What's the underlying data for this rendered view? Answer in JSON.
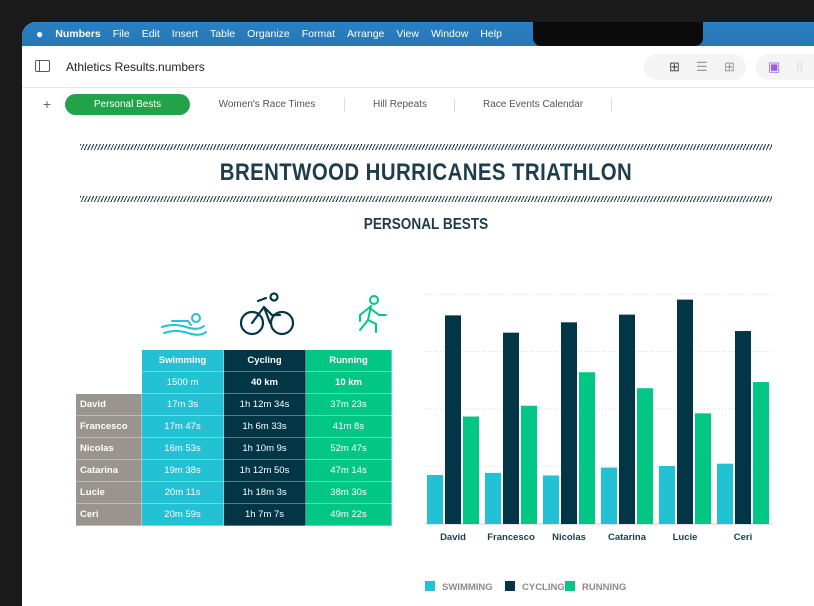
{
  "menubar": {
    "app": "Numbers",
    "items": [
      "File",
      "Edit",
      "Insert",
      "Table",
      "Organize",
      "Format",
      "Arrange",
      "View",
      "Window",
      "Help"
    ]
  },
  "toolbar": {
    "doc_title": "Athletics Results.numbers"
  },
  "tabs": {
    "add": "+",
    "items": [
      "Personal Bests",
      "Women's Race Times",
      "Hill Repeats",
      "Race Events Calendar"
    ],
    "active": 0
  },
  "sheet": {
    "title": "BRENTWOOD HURRICANES TRIATHLON",
    "subtitle": "PERSONAL BESTS"
  },
  "colors": {
    "swimming": "#22c1d4",
    "cycling": "#023646",
    "running": "#02c784",
    "names": "#9a948f",
    "tab_active": "#22a34a"
  },
  "table": {
    "headers": [
      {
        "name": "Swimming",
        "distance": "1500 m"
      },
      {
        "name": "Cycling",
        "distance": "40 km"
      },
      {
        "name": "Running",
        "distance": "10 km"
      }
    ],
    "rows": [
      {
        "name": "David",
        "values": [
          "17m 3s",
          "1h 12m 34s",
          "37m 23s"
        ]
      },
      {
        "name": "Francesco",
        "values": [
          "17m 47s",
          "1h 6m 33s",
          "41m 8s"
        ]
      },
      {
        "name": "Nicolas",
        "values": [
          "16m 53s",
          "1h 10m 9s",
          "52m 47s"
        ]
      },
      {
        "name": "Catarina",
        "values": [
          "19m 38s",
          "1h 12m 50s",
          "47m 14s"
        ]
      },
      {
        "name": "Lucie",
        "values": [
          "20m 11s",
          "1h 18m 3s",
          "38m 30s"
        ]
      },
      {
        "name": "Ceri",
        "values": [
          "20m 59s",
          "1h 7m 7s",
          "49m 22s"
        ]
      }
    ]
  },
  "chart_data": {
    "type": "bar",
    "categories": [
      "David",
      "Francesco",
      "Nicolas",
      "Catarina",
      "Lucie",
      "Ceri"
    ],
    "unit": "minutes",
    "ylim": [
      0,
      80
    ],
    "grid": true,
    "legend": "bottom",
    "series": [
      {
        "name": "SWIMMING",
        "color": "#22c1d4",
        "values": [
          17.05,
          17.78,
          16.88,
          19.63,
          20.18,
          20.98
        ]
      },
      {
        "name": "CYCLING",
        "color": "#023646",
        "values": [
          72.57,
          66.55,
          70.15,
          72.83,
          78.05,
          67.12
        ]
      },
      {
        "name": "RUNNING",
        "color": "#02c784",
        "values": [
          37.38,
          41.13,
          52.78,
          47.23,
          38.5,
          49.37
        ]
      }
    ]
  }
}
